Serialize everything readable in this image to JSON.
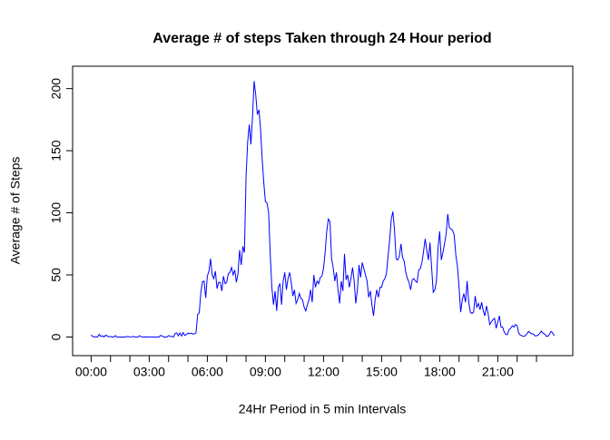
{
  "chart_data": {
    "type": "line",
    "title": "Average # of steps Taken through 24 Hour period",
    "x_label": "24Hr Period in 5 min Intervals",
    "y_label": "Average # of Steps",
    "color": "blue",
    "xlim": [
      -57.4,
      1492.4
    ],
    "ylim": [
      -15,
      218
    ],
    "xticks": [
      {
        "value": 0,
        "label": "00:00"
      },
      {
        "value": 180,
        "label": "03:00"
      },
      {
        "value": 360,
        "label": "06:00"
      },
      {
        "value": 540,
        "label": "09:00"
      },
      {
        "value": 720,
        "label": "12:00"
      },
      {
        "value": 900,
        "label": "15:00"
      },
      {
        "value": 1080,
        "label": "18:00"
      },
      {
        "value": 1260,
        "label": "21:00"
      }
    ],
    "x_minor_ticks": [
      60,
      120,
      240,
      300,
      420,
      480,
      600,
      660,
      780,
      840,
      960,
      1020,
      1140,
      1200,
      1320,
      1380
    ],
    "yticks": [
      0,
      50,
      100,
      150,
      200
    ],
    "x": [
      0,
      5,
      10,
      15,
      20,
      25,
      30,
      35,
      40,
      45,
      50,
      55,
      60,
      65,
      70,
      75,
      80,
      85,
      90,
      95,
      100,
      105,
      110,
      115,
      120,
      125,
      130,
      135,
      140,
      145,
      150,
      155,
      160,
      165,
      170,
      175,
      180,
      185,
      190,
      195,
      200,
      205,
      210,
      215,
      220,
      225,
      230,
      235,
      240,
      245,
      250,
      255,
      260,
      265,
      270,
      275,
      280,
      285,
      290,
      295,
      300,
      305,
      310,
      315,
      320,
      325,
      330,
      335,
      340,
      345,
      350,
      355,
      360,
      365,
      370,
      375,
      380,
      385,
      390,
      395,
      400,
      405,
      410,
      415,
      420,
      425,
      430,
      435,
      440,
      445,
      450,
      455,
      460,
      465,
      470,
      475,
      480,
      485,
      490,
      495,
      500,
      505,
      510,
      515,
      520,
      525,
      530,
      535,
      540,
      545,
      550,
      555,
      560,
      565,
      570,
      575,
      580,
      585,
      590,
      595,
      600,
      605,
      610,
      615,
      620,
      625,
      630,
      635,
      640,
      645,
      650,
      655,
      660,
      665,
      670,
      675,
      680,
      685,
      690,
      695,
      700,
      705,
      710,
      715,
      720,
      725,
      730,
      735,
      740,
      745,
      750,
      755,
      760,
      765,
      770,
      775,
      780,
      785,
      790,
      795,
      800,
      805,
      810,
      815,
      820,
      825,
      830,
      835,
      840,
      845,
      850,
      855,
      860,
      865,
      870,
      875,
      880,
      885,
      890,
      895,
      900,
      905,
      910,
      915,
      920,
      925,
      930,
      935,
      940,
      945,
      950,
      955,
      960,
      965,
      970,
      975,
      980,
      985,
      990,
      995,
      1000,
      1005,
      1010,
      1015,
      1020,
      1025,
      1030,
      1035,
      1040,
      1045,
      1050,
      1055,
      1060,
      1065,
      1070,
      1075,
      1080,
      1085,
      1090,
      1095,
      1100,
      1105,
      1110,
      1115,
      1120,
      1125,
      1130,
      1135,
      1140,
      1145,
      1150,
      1155,
      1160,
      1165,
      1170,
      1175,
      1180,
      1185,
      1190,
      1195,
      1200,
      1205,
      1210,
      1215,
      1220,
      1225,
      1230,
      1235,
      1240,
      1245,
      1250,
      1255,
      1260,
      1265,
      1270,
      1275,
      1280,
      1285,
      1290,
      1295,
      1300,
      1305,
      1310,
      1315,
      1320,
      1325,
      1330,
      1335,
      1340,
      1345,
      1350,
      1355,
      1360,
      1365,
      1370,
      1375,
      1380,
      1385,
      1390,
      1395,
      1400,
      1405,
      1410,
      1415,
      1420,
      1425,
      1430,
      1435
    ],
    "values": [
      1.7,
      0.3,
      0.1,
      0.2,
      0.1,
      2.1,
      0.5,
      0.9,
      0,
      1.5,
      0.8,
      0.2,
      0.4,
      0,
      0,
      1.1,
      0,
      0,
      0,
      0,
      0,
      0,
      0.3,
      0.3,
      0,
      0.2,
      0.4,
      0,
      0,
      0,
      1.1,
      0.2,
      0,
      0,
      0.1,
      0,
      0.2,
      0,
      0,
      0,
      0,
      0,
      0,
      1.2,
      0.9,
      0,
      0,
      0,
      1.2,
      0.5,
      0.4,
      0,
      2.8,
      3.3,
      1.0,
      3.3,
      0.7,
      3.6,
      1.2,
      2.0,
      3.1,
      2.6,
      3.1,
      2.4,
      2.6,
      3.3,
      18.0,
      19.5,
      36.0,
      44.5,
      45.0,
      31.5,
      49,
      53,
      63,
      50,
      47,
      53,
      39,
      44,
      44,
      37,
      49,
      43,
      44,
      51,
      52,
      56,
      50,
      54,
      44,
      51,
      70,
      58,
      73,
      68,
      129,
      157,
      171,
      155,
      177,
      206,
      195,
      179,
      183,
      167,
      143,
      124,
      109,
      108,
      100,
      66,
      40,
      26,
      37,
      21,
      40,
      43,
      26,
      45,
      52,
      38,
      47,
      52,
      44,
      33,
      38,
      27,
      30,
      35,
      31,
      30,
      24,
      21,
      26,
      30,
      38,
      28,
      50,
      40,
      45,
      43,
      48,
      49,
      55,
      68,
      85,
      95,
      93,
      63,
      56,
      45,
      52,
      38,
      27,
      45,
      37,
      67,
      46,
      50,
      40,
      47,
      56,
      45,
      27,
      38,
      58,
      48,
      60,
      55,
      50,
      45,
      32,
      37,
      26,
      17,
      30,
      38,
      32,
      40,
      40,
      45,
      47,
      51,
      65,
      78,
      95,
      101,
      86,
      63,
      62,
      65,
      75,
      64,
      61,
      52,
      47,
      44,
      38,
      46,
      47,
      45,
      44,
      54,
      55,
      60,
      69,
      79,
      70,
      62,
      76,
      56,
      36,
      38,
      45,
      72,
      85,
      62,
      68,
      75,
      83,
      99,
      88,
      87,
      86,
      82,
      66,
      57,
      40,
      20,
      30,
      35,
      28,
      45,
      28,
      20,
      19,
      20,
      33,
      24,
      27,
      22,
      28,
      21,
      17,
      25,
      19,
      10,
      12,
      14,
      15,
      7,
      12,
      17,
      8,
      8,
      4,
      2,
      2,
      6,
      7,
      9,
      8,
      10,
      9,
      3,
      1.5,
      1,
      0.5,
      1,
      2.5,
      4.5,
      3.5,
      2.5,
      2.5,
      1,
      1,
      1.5,
      3,
      4.7,
      3,
      2.5,
      0.8,
      0.5,
      2.2,
      4.5,
      3.3,
      1.1
    ]
  }
}
